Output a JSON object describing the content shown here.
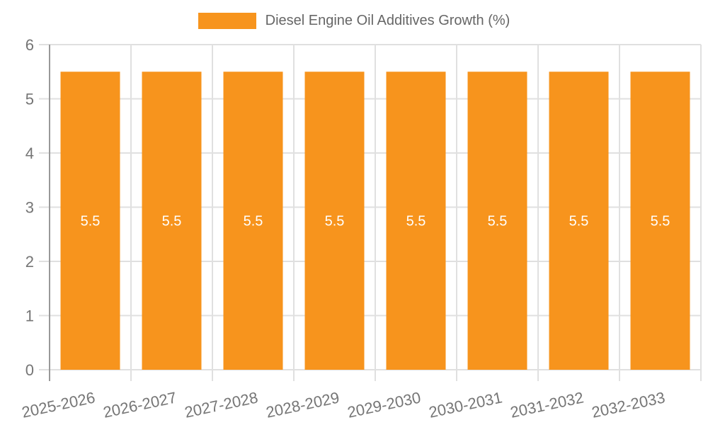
{
  "chart_data": {
    "type": "bar",
    "title": "",
    "categories": [
      "2025-2026",
      "2026-2027",
      "2027-2028",
      "2028-2029",
      "2029-2030",
      "2030-2031",
      "2031-2032",
      "2032-2033"
    ],
    "series": [
      {
        "name": "Diesel Engine Oil Additives Growth (%)",
        "values": [
          5.5,
          5.5,
          5.5,
          5.5,
          5.5,
          5.5,
          5.5,
          5.5
        ],
        "data_labels": [
          "5.5",
          "5.5",
          "5.5",
          "5.5",
          "5.5",
          "5.5",
          "5.5",
          "5.5"
        ]
      }
    ],
    "xlabel": "",
    "ylabel": "",
    "ylim": [
      0,
      6
    ],
    "yticks": [
      0,
      1,
      2,
      3,
      4,
      5,
      6
    ],
    "grid": true,
    "legend_position": "top",
    "colors": {
      "bar": "#F7941D",
      "bar_label": "#FFFFFF",
      "grid_line": "#E0E0E0",
      "axis_line": "#999999",
      "tick_label": "#757575",
      "legend_text": "#666666",
      "background": "#FFFFFF"
    }
  }
}
